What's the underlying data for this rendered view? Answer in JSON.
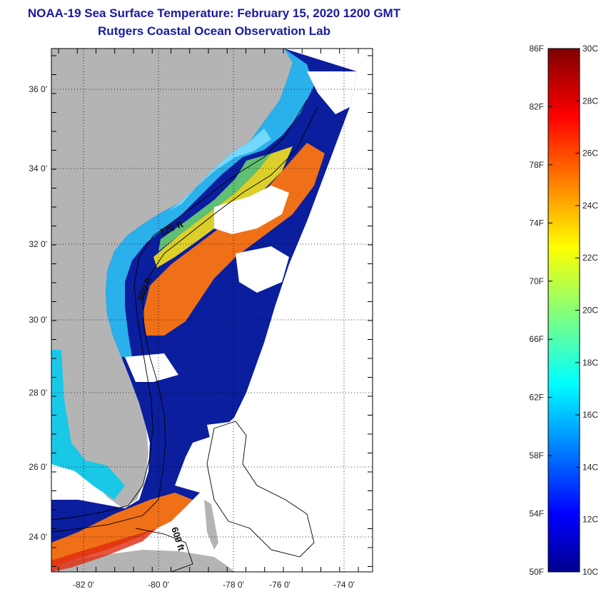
{
  "title": {
    "line1": "NOAA-19 Sea Surface Temperature:  February 15, 2020 1200 GMT",
    "line2": "Rutgers Coastal Ocean Observation Lab"
  },
  "map": {
    "lon_labels": [
      "-82 0'",
      "-80 0'",
      "-78 0'",
      "-76 0'",
      "-74 0'"
    ],
    "lat_labels": [
      "36 0'",
      "34 0'",
      "32 0'",
      "30 0'",
      "28 0'",
      "26 0'",
      "24 0'"
    ],
    "contours": [
      "120 ft",
      "600 ft",
      "600 ft"
    ],
    "colors": {
      "land": "#b4b4b4",
      "cloud": "#ffffff",
      "deep_water": "#0a1e9e",
      "shelf_cyan": "#19c8e6",
      "warm": "#f07018"
    }
  },
  "colorbar": {
    "f_labels": [
      "86F",
      "82F",
      "78F",
      "74F",
      "70F",
      "66F",
      "62F",
      "58F",
      "54F",
      "50F"
    ],
    "c_labels": [
      "30C",
      "28C",
      "26C",
      "24C",
      "22C",
      "20C",
      "18C",
      "16C",
      "14C",
      "12C",
      "10C"
    ],
    "range_c": [
      10,
      30
    ],
    "range_f": [
      50,
      86
    ]
  }
}
